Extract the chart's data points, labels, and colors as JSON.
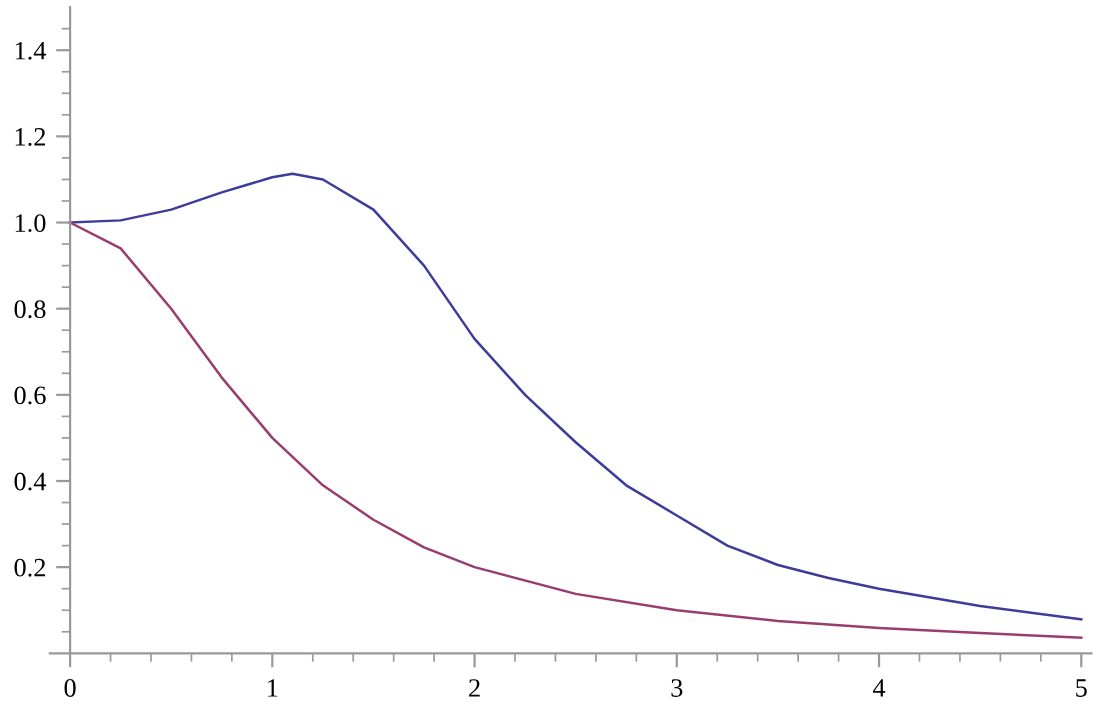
{
  "chart_data": {
    "type": "line",
    "xlim": [
      -0.1,
      5.05
    ],
    "ylim": [
      0,
      1.5
    ],
    "xticks": [
      0,
      {
        "value": 0.2,
        "label": null
      },
      {
        "value": 0.4,
        "label": null
      },
      {
        "value": 0.6,
        "label": null
      },
      {
        "value": 0.8,
        "label": null
      },
      1,
      {
        "value": 1.2,
        "label": null
      },
      {
        "value": 1.4,
        "label": null
      },
      {
        "value": 1.6,
        "label": null
      },
      {
        "value": 1.8,
        "label": null
      },
      2,
      {
        "value": 2.2,
        "label": null
      },
      {
        "value": 2.4,
        "label": null
      },
      {
        "value": 2.6,
        "label": null
      },
      {
        "value": 2.8,
        "label": null
      },
      3,
      {
        "value": 3.2,
        "label": null
      },
      {
        "value": 3.4,
        "label": null
      },
      {
        "value": 3.6,
        "label": null
      },
      {
        "value": 3.8,
        "label": null
      },
      4,
      {
        "value": 4.2,
        "label": null
      },
      {
        "value": 4.4,
        "label": null
      },
      {
        "value": 4.6,
        "label": null
      },
      {
        "value": 4.8,
        "label": null
      },
      5
    ],
    "yticks": [
      {
        "value": 0.05,
        "label": null
      },
      {
        "value": 0.1,
        "label": null
      },
      {
        "value": 0.15,
        "label": null
      },
      0.2,
      {
        "value": 0.25,
        "label": null
      },
      {
        "value": 0.3,
        "label": null
      },
      {
        "value": 0.35,
        "label": null
      },
      0.4,
      {
        "value": 0.45,
        "label": null
      },
      {
        "value": 0.5,
        "label": null
      },
      {
        "value": 0.55,
        "label": null
      },
      0.6,
      {
        "value": 0.65,
        "label": null
      },
      {
        "value": 0.7,
        "label": null
      },
      {
        "value": 0.75,
        "label": null
      },
      0.8,
      {
        "value": 0.85,
        "label": null
      },
      {
        "value": 0.9,
        "label": null
      },
      {
        "value": 0.95,
        "label": null
      },
      {
        "value": 1.0,
        "label": "1.0"
      },
      {
        "value": 1.05,
        "label": null
      },
      {
        "value": 1.1,
        "label": null
      },
      {
        "value": 1.15,
        "label": null
      },
      1.2,
      {
        "value": 1.25,
        "label": null
      },
      {
        "value": 1.3,
        "label": null
      },
      {
        "value": 1.35,
        "label": null
      },
      1.4,
      {
        "value": 1.45,
        "label": null
      }
    ],
    "grid": false,
    "legend": false,
    "marker": "none",
    "line_style": "solid",
    "series": [
      {
        "color": "#3d3d99",
        "x": [
          0,
          0.25,
          0.5,
          0.75,
          1.0,
          1.1,
          1.25,
          1.5,
          1.75,
          2.0,
          2.25,
          2.5,
          2.75,
          3.0,
          3.25,
          3.5,
          3.75,
          4.0,
          4.5,
          5.0
        ],
        "values": [
          1.0,
          1.005,
          1.03,
          1.07,
          1.105,
          1.113,
          1.1,
          1.03,
          0.9,
          0.73,
          0.6,
          0.49,
          0.39,
          0.32,
          0.25,
          0.205,
          0.175,
          0.15,
          0.11,
          0.079
        ]
      },
      {
        "color": "#993d70",
        "x": [
          0,
          0.25,
          0.5,
          0.75,
          1.0,
          1.25,
          1.5,
          1.75,
          2.0,
          2.5,
          3.0,
          3.5,
          4.0,
          4.5,
          5.0
        ],
        "values": [
          1.0,
          0.94,
          0.8,
          0.64,
          0.5,
          0.39,
          0.31,
          0.246,
          0.2,
          0.138,
          0.1,
          0.075,
          0.059,
          0.047,
          0.036
        ]
      }
    ]
  }
}
